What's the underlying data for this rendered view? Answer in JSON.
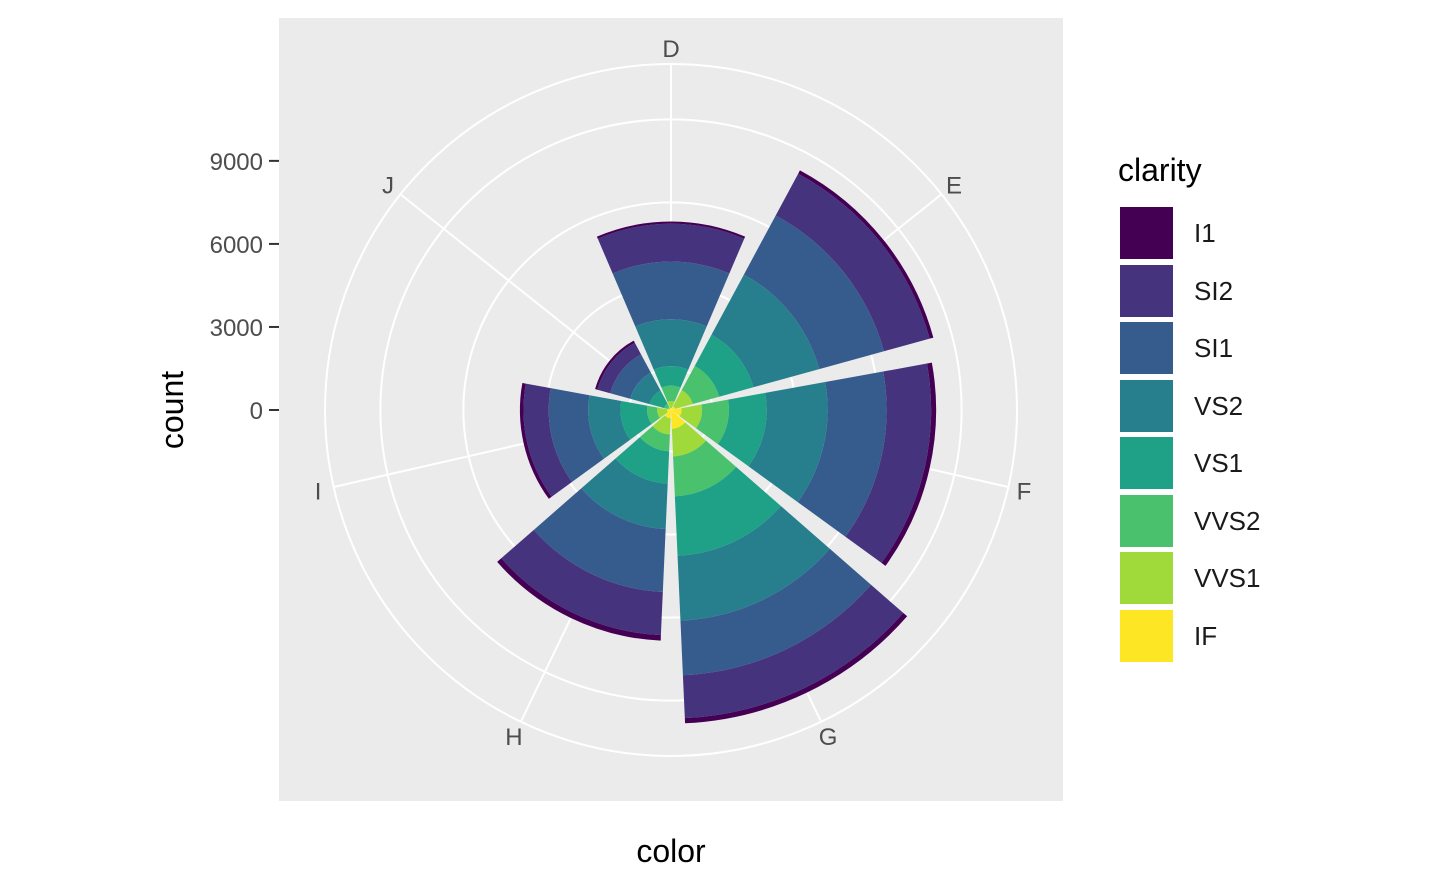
{
  "chart_data": {
    "type": "bar",
    "coord": "polar",
    "position": "stack",
    "categories": [
      "D",
      "E",
      "F",
      "G",
      "H",
      "I",
      "J"
    ],
    "xlabel": "color",
    "ylabel": "count",
    "y_ticks": [
      0,
      3000,
      6000,
      9000
    ],
    "legend_title": "clarity",
    "legend_placement": "right",
    "grid": true,
    "series": [
      {
        "name": "I1",
        "color": "#440154",
        "values": [
          42,
          102,
          143,
          150,
          162,
          92,
          50
        ]
      },
      {
        "name": "SI2",
        "color": "#46337E",
        "values": [
          1370,
          1713,
          1609,
          1548,
          1563,
          912,
          479
        ]
      },
      {
        "name": "SI1",
        "color": "#365C8D",
        "values": [
          2083,
          2426,
          2131,
          1976,
          2275,
          1424,
          750
        ]
      },
      {
        "name": "VS2",
        "color": "#277F8E",
        "values": [
          1697,
          2470,
          2201,
          2347,
          1643,
          1169,
          731
        ]
      },
      {
        "name": "VS1",
        "color": "#1FA187",
        "values": [
          705,
          1281,
          1364,
          2148,
          1169,
          962,
          542
        ]
      },
      {
        "name": "VVS2",
        "color": "#4AC16D",
        "values": [
          553,
          991,
          975,
          1443,
          608,
          365,
          131
        ]
      },
      {
        "name": "VVS1",
        "color": "#9FDA3A",
        "values": [
          252,
          656,
          734,
          999,
          585,
          355,
          74
        ]
      },
      {
        "name": "IF",
        "color": "#FDE725",
        "values": [
          73,
          158,
          385,
          681,
          299,
          143,
          51
        ]
      }
    ]
  }
}
